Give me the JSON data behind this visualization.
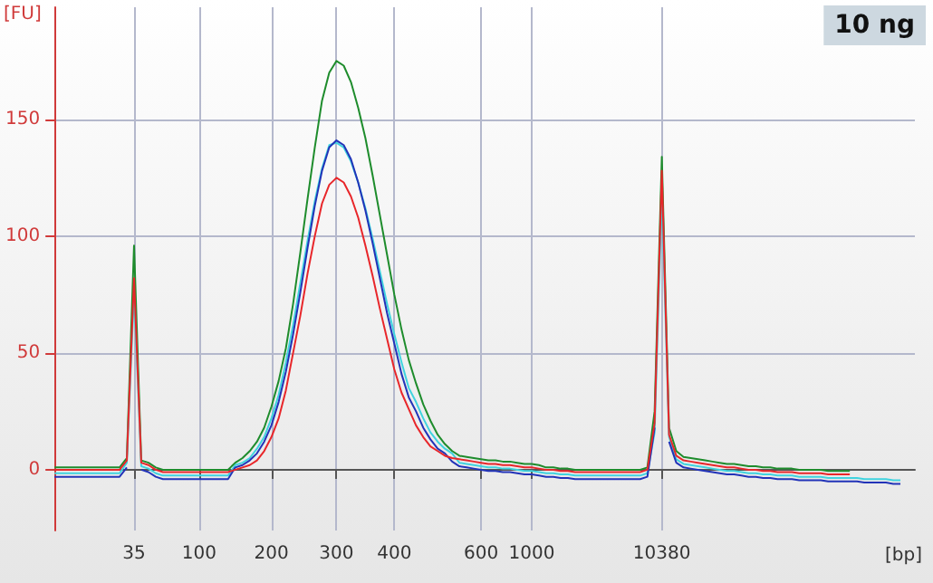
{
  "chart_data": {
    "type": "line",
    "xlabel": "[bp]",
    "ylabel": "[FU]",
    "annotations": [
      "10 ng"
    ],
    "categories": [
      null,
      null,
      null,
      null,
      null,
      null,
      null,
      null,
      null,
      null,
      null,
      "35",
      null,
      null,
      null,
      null,
      null,
      null,
      null,
      null,
      "100",
      null,
      null,
      null,
      null,
      null,
      null,
      null,
      null,
      null,
      "200",
      null,
      null,
      null,
      null,
      null,
      null,
      null,
      null,
      "300",
      null,
      null,
      null,
      null,
      null,
      null,
      null,
      "400",
      null,
      null,
      null,
      null,
      null,
      null,
      null,
      null,
      null,
      null,
      null,
      "600",
      null,
      null,
      null,
      null,
      null,
      null,
      "1000",
      null,
      null,
      null,
      null,
      null,
      null,
      null,
      null,
      null,
      null,
      null,
      null,
      null,
      null,
      null,
      null,
      null,
      "10380",
      null,
      null,
      null,
      null,
      null,
      null,
      null,
      null,
      null,
      null,
      null,
      null,
      null,
      null,
      null,
      null,
      null,
      null,
      null,
      null,
      null,
      null,
      null,
      null,
      null,
      null,
      null,
      null,
      null,
      null,
      null,
      null,
      null,
      null,
      null
    ],
    "series": [
      {
        "color": "#1e8c2c",
        "values": [
          1,
          1,
          1,
          1,
          1,
          1,
          1,
          1,
          1,
          1,
          5,
          96,
          4,
          3,
          1,
          0,
          0,
          0,
          0,
          0,
          0,
          0,
          0,
          0,
          0,
          3,
          5,
          8,
          12,
          18,
          27,
          38,
          52,
          71,
          93,
          116,
          138,
          158,
          170,
          175,
          173,
          166,
          155,
          142,
          126,
          109,
          92,
          75,
          60,
          47,
          37,
          28,
          21,
          15,
          11,
          8,
          6,
          5.5,
          5,
          4.5,
          4,
          4,
          3.5,
          3.5,
          3,
          2.5,
          2.5,
          2,
          1,
          1,
          0.5,
          0.5,
          0,
          0,
          0,
          0,
          0,
          0,
          0,
          0,
          0,
          0,
          1,
          25,
          134,
          18,
          8,
          5.5,
          5,
          4.5,
          4,
          3.5,
          3,
          2.5,
          2.5,
          2,
          1.5,
          1.5,
          1,
          1,
          0.5,
          0.5,
          0.5,
          0,
          0,
          0,
          0,
          -0.5,
          -0.5,
          -0.5,
          -0.5,
          null,
          null,
          null,
          null,
          null,
          null,
          null,
          null,
          null
        ]
      },
      {
        "color": "#3fd3df",
        "values": [
          -1.5,
          -1.5,
          -1.5,
          -1.5,
          -1.5,
          -1.5,
          -1.5,
          -1.5,
          -1.5,
          -1.5,
          3,
          76,
          1.5,
          0.5,
          -1.5,
          -2.5,
          -2.5,
          -2.5,
          -2.5,
          -2.5,
          -2.5,
          -2.5,
          -2.5,
          -2.5,
          -2.5,
          2,
          3,
          5,
          9,
          14,
          22,
          32,
          46,
          62,
          80,
          98,
          115,
          129,
          139,
          140,
          138,
          132,
          123,
          112,
          99,
          85,
          71,
          58,
          46,
          35,
          29,
          22,
          16,
          12,
          9,
          7,
          3,
          2.5,
          2,
          1.5,
          1,
          1,
          0.5,
          0.5,
          0,
          -0.5,
          -0.5,
          -1,
          -1.5,
          -1.5,
          -2,
          -2,
          -2.5,
          -2.5,
          -2.5,
          -2.5,
          -2.5,
          -2.5,
          -2.5,
          -2.5,
          -2.5,
          -2.5,
          -1.5,
          16,
          118,
          14,
          4.5,
          2.5,
          2,
          1.5,
          1,
          0.5,
          0,
          -0.5,
          -0.5,
          -1,
          -1.5,
          -1.5,
          -2,
          -2,
          -2.5,
          -2.5,
          -2.5,
          -3,
          -3,
          -3,
          -3,
          -3.5,
          -3.5,
          -3.5,
          -3.5,
          -3.5,
          -4,
          -4,
          -4,
          -4,
          -4.5,
          -4.5,
          null,
          null
        ]
      },
      {
        "color": "#2233b8",
        "values": [
          -3,
          -3,
          -3,
          -3,
          -3,
          -3,
          -3,
          -3,
          -3,
          -3,
          1,
          null,
          0,
          -1,
          -3,
          -4,
          -4,
          -4,
          -4,
          -4,
          -4,
          -4,
          -4,
          -4,
          -4,
          1,
          2,
          4,
          7,
          12,
          19,
          29,
          42,
          58,
          76,
          95,
          113,
          128,
          138,
          141,
          139,
          133,
          123,
          111,
          97,
          82,
          67,
          54,
          41,
          31,
          25,
          18,
          13,
          9,
          7,
          3.5,
          1.5,
          1,
          0.5,
          0,
          -0.5,
          -0.5,
          -1,
          -1,
          -1.5,
          -2,
          -2,
          -2.5,
          -3,
          -3,
          -3.5,
          -3.5,
          -4,
          -4,
          -4,
          -4,
          -4,
          -4,
          -4,
          -4,
          -4,
          -4,
          -3,
          18,
          null,
          12,
          3,
          1,
          0.5,
          0,
          -0.5,
          -1,
          -1.5,
          -2,
          -2,
          -2.5,
          -3,
          -3,
          -3.5,
          -3.5,
          -4,
          -4,
          -4,
          -4.5,
          -4.5,
          -4.5,
          -4.5,
          -5,
          -5,
          -5,
          -5,
          -5,
          -5.5,
          -5.5,
          -5.5,
          -5.5,
          -6,
          -6,
          null,
          null
        ]
      },
      {
        "color": "#e8262a",
        "values": [
          0,
          0,
          0,
          0,
          0,
          0,
          0,
          0,
          0,
          0,
          4,
          82,
          3,
          2,
          0,
          -1,
          -1,
          -1,
          -1,
          -1,
          -1,
          -1,
          -1,
          -1,
          -1,
          0,
          1,
          2,
          4,
          8,
          14,
          22,
          34,
          50,
          66,
          84,
          100,
          114,
          122,
          125,
          123,
          117,
          108,
          96,
          83,
          69,
          56,
          43,
          33,
          26,
          19,
          14,
          10,
          8,
          6,
          5,
          4.5,
          4,
          3.5,
          3,
          2.5,
          2.5,
          2,
          2,
          1.5,
          1,
          1,
          0.5,
          0,
          0,
          -0.5,
          -0.5,
          -1,
          -1,
          -1,
          -1,
          -1,
          -1,
          -1,
          -1,
          -1,
          -1,
          0,
          20,
          128,
          15,
          6,
          4,
          3.5,
          3,
          2.5,
          2,
          1.5,
          1,
          1,
          0.5,
          0,
          0,
          -0.5,
          -0.5,
          -1,
          -1,
          -1,
          -1.5,
          -1.5,
          -1.5,
          -1.5,
          -2,
          -2,
          -2,
          -2,
          null,
          null,
          null,
          null,
          null,
          null,
          null,
          null,
          null
        ]
      }
    ],
    "ylim": [
      -26,
      198
    ],
    "yticks": [
      0,
      50,
      100,
      150
    ],
    "grid": true,
    "marker": "none",
    "line_style": "solid"
  }
}
